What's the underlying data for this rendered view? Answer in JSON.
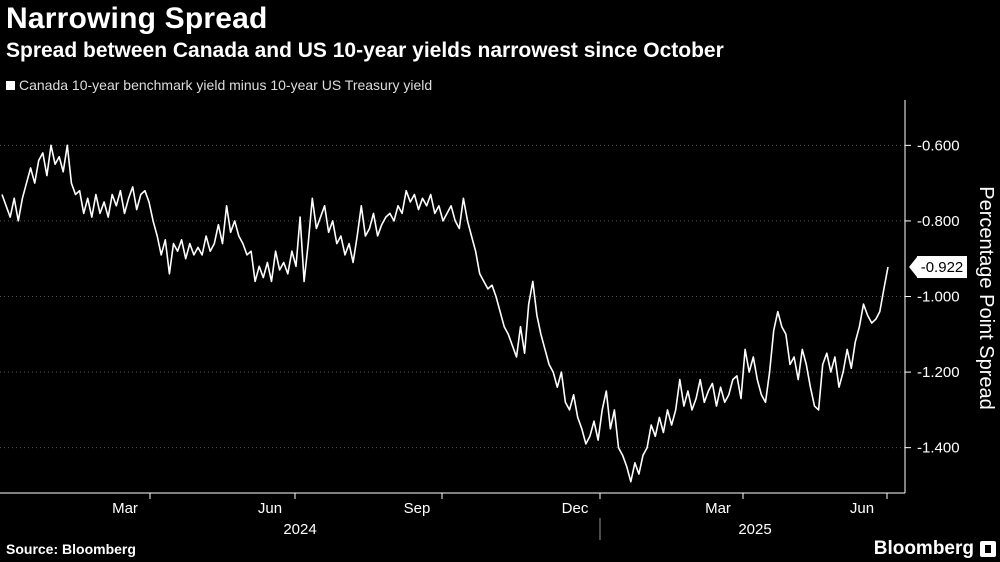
{
  "header": {
    "title": "Narrowing Spread",
    "subtitle": "Spread between Canada and US 10-year yields narrowest since October"
  },
  "footer": {
    "source": "Source: Bloomberg",
    "brand": "Bloomberg"
  },
  "chart_data": {
    "type": "line",
    "legend": [
      "Canada 10-year benchmark yield minus 10-year US Treasury yield"
    ],
    "ylabel": "Percentage Point Spread",
    "ylim": [
      -1.52,
      -0.48
    ],
    "y_ticks": [
      -0.6,
      -0.8,
      -1.0,
      -1.2,
      -1.4
    ],
    "y_tick_labels": [
      "-0.600",
      "-0.800",
      "-1.000",
      "-1.200",
      "-1.400"
    ],
    "x_ticks": [
      "Mar",
      "Jun",
      "Sep",
      "Dec",
      "Mar",
      "Jun"
    ],
    "x_year_labels": [
      "2024",
      "2025"
    ],
    "last_value_label": "-0.922",
    "grid": true,
    "series": [
      {
        "color": "#ffffff",
        "values": [
          -0.73,
          -0.76,
          -0.79,
          -0.74,
          -0.8,
          -0.74,
          -0.7,
          -0.66,
          -0.7,
          -0.64,
          -0.62,
          -0.68,
          -0.6,
          -0.65,
          -0.63,
          -0.67,
          -0.6,
          -0.7,
          -0.73,
          -0.72,
          -0.78,
          -0.74,
          -0.79,
          -0.73,
          -0.78,
          -0.75,
          -0.79,
          -0.73,
          -0.76,
          -0.72,
          -0.78,
          -0.74,
          -0.71,
          -0.77,
          -0.73,
          -0.72,
          -0.75,
          -0.8,
          -0.84,
          -0.89,
          -0.85,
          -0.94,
          -0.86,
          -0.88,
          -0.85,
          -0.9,
          -0.86,
          -0.89,
          -0.87,
          -0.89,
          -0.84,
          -0.88,
          -0.86,
          -0.81,
          -0.86,
          -0.76,
          -0.83,
          -0.8,
          -0.84,
          -0.86,
          -0.89,
          -0.88,
          -0.96,
          -0.92,
          -0.95,
          -0.91,
          -0.96,
          -0.88,
          -0.93,
          -0.91,
          -0.94,
          -0.88,
          -0.92,
          -0.79,
          -0.96,
          -0.86,
          -0.74,
          -0.82,
          -0.79,
          -0.76,
          -0.83,
          -0.8,
          -0.86,
          -0.84,
          -0.89,
          -0.86,
          -0.91,
          -0.84,
          -0.76,
          -0.84,
          -0.82,
          -0.78,
          -0.84,
          -0.81,
          -0.79,
          -0.78,
          -0.8,
          -0.76,
          -0.78,
          -0.72,
          -0.75,
          -0.73,
          -0.77,
          -0.74,
          -0.76,
          -0.73,
          -0.78,
          -0.76,
          -0.8,
          -0.78,
          -0.76,
          -0.8,
          -0.82,
          -0.74,
          -0.8,
          -0.84,
          -0.88,
          -0.94,
          -0.96,
          -0.98,
          -0.97,
          -1.0,
          -1.04,
          -1.08,
          -1.1,
          -1.13,
          -1.16,
          -1.08,
          -1.15,
          -1.02,
          -0.96,
          -1.05,
          -1.1,
          -1.14,
          -1.18,
          -1.2,
          -1.24,
          -1.2,
          -1.28,
          -1.3,
          -1.26,
          -1.32,
          -1.35,
          -1.39,
          -1.37,
          -1.33,
          -1.38,
          -1.3,
          -1.25,
          -1.35,
          -1.3,
          -1.4,
          -1.42,
          -1.45,
          -1.49,
          -1.44,
          -1.47,
          -1.42,
          -1.4,
          -1.34,
          -1.37,
          -1.32,
          -1.36,
          -1.3,
          -1.34,
          -1.3,
          -1.22,
          -1.29,
          -1.25,
          -1.3,
          -1.27,
          -1.22,
          -1.28,
          -1.25,
          -1.23,
          -1.29,
          -1.24,
          -1.28,
          -1.26,
          -1.22,
          -1.21,
          -1.27,
          -1.14,
          -1.2,
          -1.16,
          -1.22,
          -1.26,
          -1.28,
          -1.2,
          -1.09,
          -1.04,
          -1.08,
          -1.1,
          -1.18,
          -1.16,
          -1.22,
          -1.14,
          -1.18,
          -1.24,
          -1.29,
          -1.3,
          -1.18,
          -1.15,
          -1.2,
          -1.16,
          -1.24,
          -1.2,
          -1.14,
          -1.19,
          -1.12,
          -1.08,
          -1.02,
          -1.05,
          -1.07,
          -1.06,
          -1.04,
          -0.98,
          -0.922
        ]
      }
    ]
  }
}
